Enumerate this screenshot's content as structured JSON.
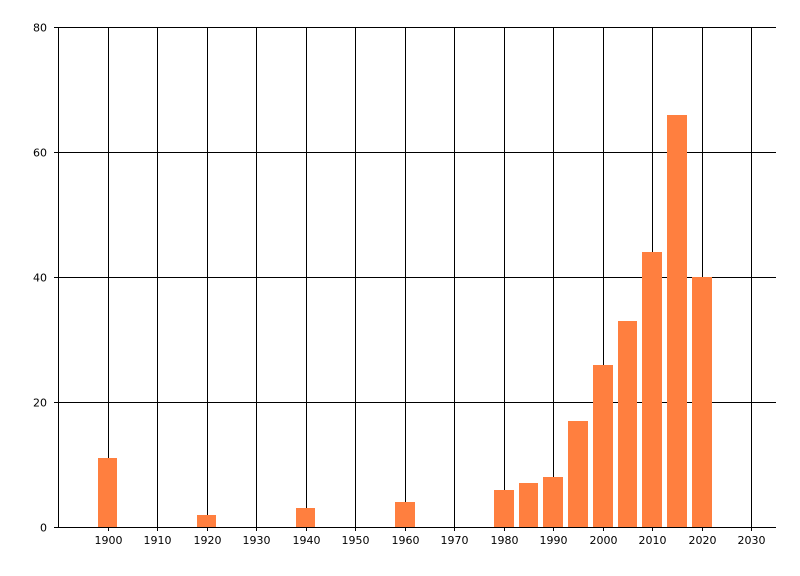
{
  "chart_data": {
    "type": "bar",
    "title": "",
    "xlabel": "",
    "ylabel": "",
    "x": [
      1900,
      1920,
      1940,
      1960,
      1980,
      1985,
      1990,
      1995,
      2000,
      2005,
      2010,
      2015,
      2020
    ],
    "values": [
      11,
      2,
      3,
      4,
      6,
      7,
      8,
      17,
      26,
      33,
      44,
      66,
      40
    ],
    "bar_width_years": 4,
    "xlim": [
      1890,
      2035
    ],
    "ylim": [
      0,
      80
    ],
    "x_ticks": [
      1900,
      1910,
      1920,
      1930,
      1940,
      1950,
      1960,
      1970,
      1980,
      1990,
      2000,
      2010,
      2020,
      2030
    ],
    "y_ticks": [
      0,
      20,
      40,
      60,
      80
    ],
    "grid": true,
    "bar_color": "#FF7F3F",
    "grid_color": "#000000"
  }
}
